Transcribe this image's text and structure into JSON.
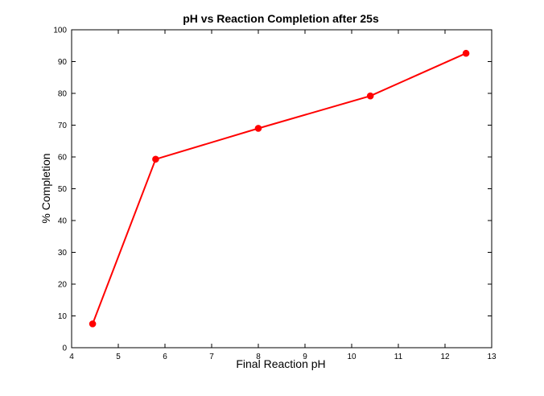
{
  "chart_data": {
    "type": "line",
    "title": "pH vs Reaction Completion after 25s",
    "xlabel": "Final Reaction pH",
    "ylabel": "% Completion",
    "xlim": [
      4,
      13
    ],
    "ylim": [
      0,
      100
    ],
    "xticks": [
      4,
      5,
      6,
      7,
      8,
      9,
      10,
      11,
      12,
      13
    ],
    "yticks": [
      0,
      10,
      20,
      30,
      40,
      50,
      60,
      70,
      80,
      90,
      100
    ],
    "grid": false,
    "legend": "none",
    "series": [
      {
        "color": "#ff0000",
        "marker": "circle",
        "x": [
          4.45,
          5.8,
          8.0,
          10.4,
          12.45
        ],
        "y": [
          7.5,
          59.3,
          69.0,
          79.2,
          92.6
        ]
      }
    ]
  }
}
